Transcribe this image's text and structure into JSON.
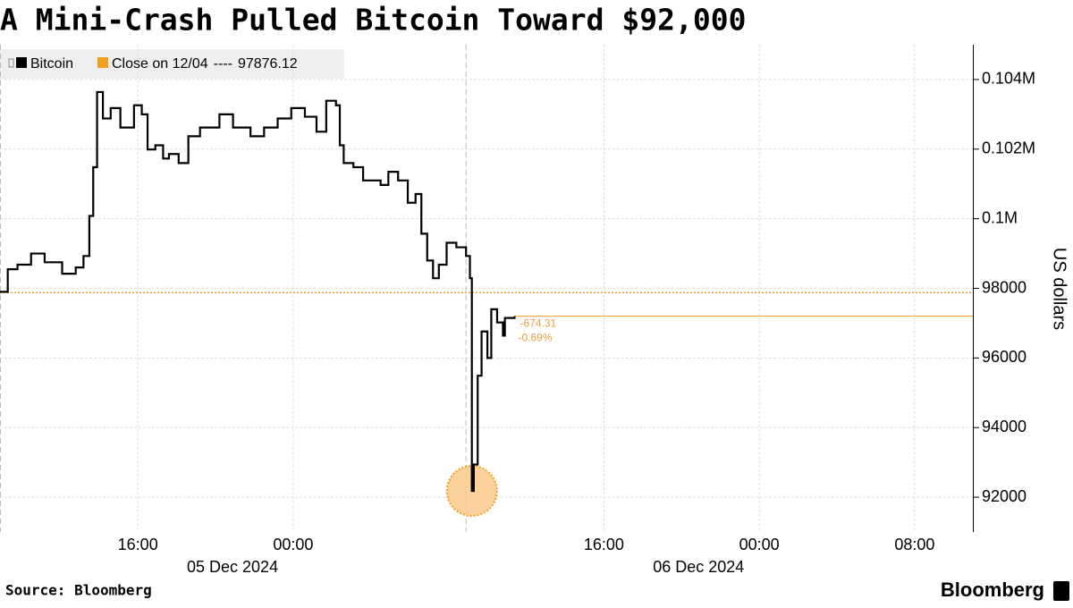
{
  "chart_data": {
    "type": "line",
    "title": "A Mini-Crash Pulled Bitcoin Toward $92,000",
    "y_label": "US dollars",
    "source": "Source: Bloomberg",
    "brand": "Bloomberg",
    "xlim": [
      -15.1,
      35
    ],
    "xticks": [
      {
        "value": -8,
        "label": "16:00"
      },
      {
        "value": 0,
        "label": "00:00"
      },
      {
        "value": 16,
        "label": "16:00"
      },
      {
        "value": 24,
        "label": "00:00"
      },
      {
        "value": 32,
        "label": "08:00"
      }
    ],
    "x_date_labels": [
      "05 Dec 2024",
      "06 Dec 2024"
    ],
    "ylim": [
      91000,
      105000
    ],
    "yticks": [
      92000,
      94000,
      96000,
      98000,
      {
        "value": 100000,
        "label": "0.1M"
      },
      {
        "value": 102000,
        "label": "0.102M"
      },
      {
        "value": 104000,
        "label": "0.104M"
      }
    ],
    "grid": true,
    "session_breaks": [
      8.9
    ],
    "series": [
      {
        "name": "Bitcoin",
        "color": "#000000",
        "x": [
          -15.1,
          -14.7,
          -14.2,
          -13.5,
          -12.8,
          -11.9,
          -11.2,
          -10.8,
          -10.5,
          -10.3,
          -10.1,
          -9.8,
          -9.4,
          -8.9,
          -8.2,
          -7.8,
          -7.5,
          -7.1,
          -6.7,
          -6.4,
          -5.9,
          -5.4,
          -4.8,
          -3.8,
          -3.1,
          -2.2,
          -1.5,
          -0.8,
          -0.1,
          0.6,
          1.2,
          1.7,
          2.2,
          2.4,
          2.6,
          3.1,
          3.6,
          4.0,
          4.5,
          4.9,
          5.4,
          5.9,
          6.3,
          6.6,
          6.9,
          7.2,
          7.5,
          7.9,
          8.4,
          8.9,
          9.1,
          9.2,
          9.3,
          9.5,
          9.7,
          10.0,
          10.2,
          10.5,
          10.8,
          10.9,
          11.2,
          11.4
        ],
        "values": [
          97900,
          98550,
          98680,
          99000,
          98750,
          98420,
          98600,
          98930,
          100080,
          101480,
          103640,
          102880,
          103180,
          102620,
          103260,
          103000,
          101990,
          102110,
          101730,
          101860,
          101600,
          102370,
          102620,
          103000,
          102620,
          102370,
          102620,
          102880,
          103180,
          102930,
          102500,
          103390,
          103260,
          102110,
          101600,
          101480,
          101100,
          101100,
          100970,
          101350,
          101100,
          100460,
          100710,
          99570,
          98800,
          98290,
          98680,
          99310,
          99180,
          98930,
          98290,
          92180,
          92940,
          95490,
          96760,
          96000,
          97400,
          97020,
          96640,
          97150,
          97150,
          97201.81
        ]
      }
    ],
    "reference_line": {
      "name": "Close on 12/04",
      "separator": "----",
      "value": 97876.12,
      "color": "#f0a020"
    },
    "change": -674.31,
    "change_pct": {
      "value": -0.69,
      "label": "-0.69%"
    }
  }
}
